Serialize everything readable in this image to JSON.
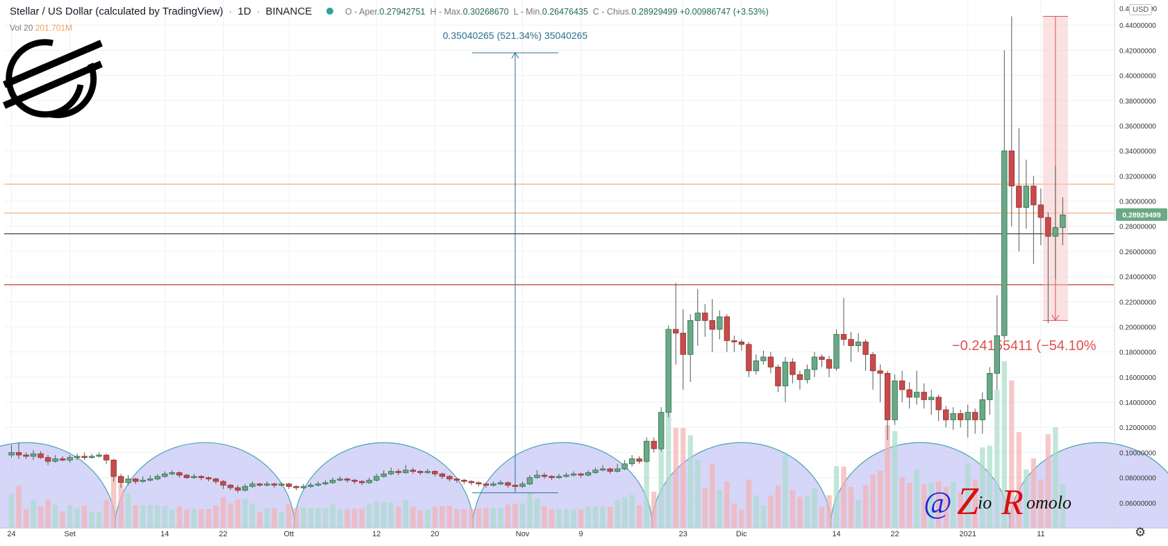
{
  "header": {
    "symbol_title": "Stellar / US Dollar (calculated by TradingView)",
    "interval": "1D",
    "exchange": "BINANCE",
    "open_label": "O - Aper.",
    "open_value": "0.27942751",
    "high_label": "H - Max.",
    "high_value": "0.30268670",
    "low_label": "L - Min.",
    "low_value": "0.26476435",
    "close_label": "C - Chius.",
    "close_value": "0.28929499",
    "change_value": "+0.00986747 (+3.53%)",
    "volume_label": "Vol 20",
    "volume_value": "201.701M",
    "currency_button": "USD"
  },
  "watermark": "@ ZioRomolo",
  "colors": {
    "up": "#26a69a",
    "up_body": "#6aa985",
    "down": "#ef5350",
    "down_body": "#c94a4a",
    "grid": "#eef0f3",
    "hline_orange": "#f0b07a",
    "hline_black": "#333333",
    "hline_red": "#c0392b",
    "measure_up": "#2a6f8a",
    "measure_down": "#e05050",
    "cycle_fill": "#c8c8f5",
    "cycle_stroke": "#4aa3b0",
    "price_tag": "#6aa985"
  },
  "icons": {
    "logo": "stellar-logo-icon",
    "settings": "gear-icon",
    "status": "live-dot-icon"
  },
  "chart_data": {
    "type": "candlestick",
    "ylim": [
      0.04,
      0.46
    ],
    "y_ticks": [
      "0.06000000",
      "0.08000000",
      "0.10000000",
      "0.12000000",
      "0.14000000",
      "0.16000000",
      "0.18000000",
      "0.20000000",
      "0.22000000",
      "0.24000000",
      "0.26000000",
      "0.28000000",
      "0.30000000",
      "0.32000000",
      "0.34000000",
      "0.36000000",
      "0.38000000",
      "0.40000000",
      "0.42000000",
      "0.44000000"
    ],
    "y_top_label": "0.4",
    "y_top_label_tail": "00",
    "x_ticks": [
      {
        "label": "24",
        "day": 0
      },
      {
        "label": "Set",
        "day": 8
      },
      {
        "label": "14",
        "day": 21
      },
      {
        "label": "22",
        "day": 29
      },
      {
        "label": "Ott",
        "day": 38
      },
      {
        "label": "12",
        "day": 50
      },
      {
        "label": "20",
        "day": 58
      },
      {
        "label": "Nov",
        "day": 70
      },
      {
        "label": "9",
        "day": 78
      },
      {
        "label": "23",
        "day": 92
      },
      {
        "label": "Dic",
        "day": 100
      },
      {
        "label": "14",
        "day": 113
      },
      {
        "label": "22",
        "day": 121
      },
      {
        "label": "2021",
        "day": 131
      },
      {
        "label": "11",
        "day": 141
      }
    ],
    "x_range_days": [
      -1,
      151
    ],
    "current_price": "0.28929499",
    "horizontal_lines": [
      {
        "price": 0.3135,
        "style": "orange"
      },
      {
        "price": 0.2905,
        "style": "orange"
      },
      {
        "price": 0.274,
        "style": "black"
      },
      {
        "price": 0.2335,
        "style": "red"
      }
    ],
    "measure_up": {
      "day": 69,
      "from": 0.068,
      "to": 0.418,
      "label": "0.35040265 (521.34%) 35040265"
    },
    "measure_down": {
      "day": 143,
      "from": 0.447,
      "to": 0.205,
      "label": "−0.24155411 (−54.10%"
    },
    "cycles": [
      {
        "center_day": 2,
        "radius_days": 12.3
      },
      {
        "center_day": 26.5,
        "radius_days": 12.3
      },
      {
        "center_day": 51,
        "radius_days": 12.3
      },
      {
        "center_day": 75.5,
        "radius_days": 12.3
      },
      {
        "center_day": 100,
        "radius_days": 12.3
      },
      {
        "center_day": 124.5,
        "radius_days": 12.3
      },
      {
        "center_day": 149,
        "radius_days": 12.3
      }
    ],
    "candles": [
      [
        0,
        0.098,
        0.1,
        0.106,
        0.096
      ],
      [
        1,
        0.1,
        0.098,
        0.108,
        0.095
      ],
      [
        2,
        0.098,
        0.097,
        0.1,
        0.095
      ],
      [
        3,
        0.097,
        0.099,
        0.102,
        0.094
      ],
      [
        4,
        0.099,
        0.096,
        0.101,
        0.095
      ],
      [
        5,
        0.096,
        0.093,
        0.098,
        0.09
      ],
      [
        6,
        0.093,
        0.095,
        0.098,
        0.092
      ],
      [
        7,
        0.095,
        0.094,
        0.097,
        0.093
      ],
      [
        8,
        0.094,
        0.096,
        0.098,
        0.092
      ],
      [
        9,
        0.096,
        0.097,
        0.099,
        0.094
      ],
      [
        10,
        0.097,
        0.096,
        0.1,
        0.094
      ],
      [
        11,
        0.096,
        0.097,
        0.099,
        0.095
      ],
      [
        12,
        0.097,
        0.098,
        0.1,
        0.096
      ],
      [
        13,
        0.098,
        0.094,
        0.099,
        0.091
      ],
      [
        14,
        0.094,
        0.081,
        0.095,
        0.077
      ],
      [
        15,
        0.081,
        0.076,
        0.083,
        0.072
      ],
      [
        16,
        0.076,
        0.079,
        0.082,
        0.074
      ],
      [
        17,
        0.079,
        0.077,
        0.08,
        0.075
      ],
      [
        18,
        0.077,
        0.078,
        0.081,
        0.076
      ],
      [
        19,
        0.078,
        0.079,
        0.082,
        0.077
      ],
      [
        20,
        0.079,
        0.081,
        0.083,
        0.078
      ],
      [
        21,
        0.081,
        0.083,
        0.085,
        0.08
      ],
      [
        22,
        0.083,
        0.084,
        0.086,
        0.082
      ],
      [
        23,
        0.084,
        0.082,
        0.085,
        0.08
      ],
      [
        24,
        0.082,
        0.08,
        0.083,
        0.079
      ],
      [
        25,
        0.08,
        0.081,
        0.083,
        0.079
      ],
      [
        26,
        0.081,
        0.08,
        0.082,
        0.078
      ],
      [
        27,
        0.08,
        0.079,
        0.081,
        0.077
      ],
      [
        28,
        0.079,
        0.077,
        0.08,
        0.075
      ],
      [
        29,
        0.077,
        0.074,
        0.078,
        0.071
      ],
      [
        30,
        0.074,
        0.072,
        0.075,
        0.07
      ],
      [
        31,
        0.072,
        0.07,
        0.074,
        0.068
      ],
      [
        32,
        0.07,
        0.073,
        0.075,
        0.069
      ],
      [
        33,
        0.073,
        0.075,
        0.077,
        0.072
      ],
      [
        34,
        0.075,
        0.074,
        0.076,
        0.073
      ],
      [
        35,
        0.074,
        0.075,
        0.077,
        0.073
      ],
      [
        36,
        0.075,
        0.074,
        0.076,
        0.072
      ],
      [
        37,
        0.074,
        0.075,
        0.076,
        0.073
      ],
      [
        38,
        0.075,
        0.073,
        0.076,
        0.071
      ],
      [
        39,
        0.073,
        0.072,
        0.074,
        0.07
      ],
      [
        40,
        0.072,
        0.073,
        0.075,
        0.071
      ],
      [
        41,
        0.073,
        0.074,
        0.076,
        0.072
      ],
      [
        42,
        0.074,
        0.075,
        0.077,
        0.073
      ],
      [
        43,
        0.075,
        0.076,
        0.078,
        0.074
      ],
      [
        44,
        0.076,
        0.078,
        0.08,
        0.075
      ],
      [
        45,
        0.078,
        0.079,
        0.081,
        0.077
      ],
      [
        46,
        0.079,
        0.078,
        0.08,
        0.076
      ],
      [
        47,
        0.078,
        0.077,
        0.079,
        0.075
      ],
      [
        48,
        0.077,
        0.076,
        0.078,
        0.074
      ],
      [
        49,
        0.076,
        0.078,
        0.08,
        0.075
      ],
      [
        50,
        0.078,
        0.081,
        0.083,
        0.077
      ],
      [
        51,
        0.081,
        0.083,
        0.086,
        0.08
      ],
      [
        52,
        0.083,
        0.085,
        0.088,
        0.082
      ],
      [
        53,
        0.085,
        0.084,
        0.087,
        0.082
      ],
      [
        54,
        0.084,
        0.086,
        0.09,
        0.083
      ],
      [
        55,
        0.086,
        0.085,
        0.088,
        0.083
      ],
      [
        56,
        0.085,
        0.084,
        0.086,
        0.082
      ],
      [
        57,
        0.084,
        0.085,
        0.087,
        0.083
      ],
      [
        58,
        0.085,
        0.083,
        0.086,
        0.081
      ],
      [
        59,
        0.083,
        0.081,
        0.084,
        0.079
      ],
      [
        60,
        0.081,
        0.079,
        0.082,
        0.077
      ],
      [
        61,
        0.079,
        0.078,
        0.08,
        0.076
      ],
      [
        62,
        0.078,
        0.077,
        0.079,
        0.075
      ],
      [
        63,
        0.077,
        0.076,
        0.078,
        0.074
      ],
      [
        64,
        0.076,
        0.075,
        0.077,
        0.073
      ],
      [
        65,
        0.075,
        0.074,
        0.076,
        0.072
      ],
      [
        66,
        0.074,
        0.075,
        0.077,
        0.073
      ],
      [
        67,
        0.075,
        0.076,
        0.078,
        0.074
      ],
      [
        68,
        0.076,
        0.074,
        0.077,
        0.072
      ],
      [
        69,
        0.074,
        0.073,
        0.075,
        0.07
      ],
      [
        70,
        0.073,
        0.075,
        0.077,
        0.072
      ],
      [
        71,
        0.075,
        0.08,
        0.082,
        0.074
      ],
      [
        72,
        0.08,
        0.082,
        0.086,
        0.079
      ],
      [
        73,
        0.082,
        0.081,
        0.084,
        0.079
      ],
      [
        74,
        0.081,
        0.08,
        0.082,
        0.078
      ],
      [
        75,
        0.08,
        0.081,
        0.083,
        0.079
      ],
      [
        76,
        0.081,
        0.082,
        0.084,
        0.08
      ],
      [
        77,
        0.082,
        0.083,
        0.085,
        0.081
      ],
      [
        78,
        0.083,
        0.082,
        0.084,
        0.08
      ],
      [
        79,
        0.082,
        0.084,
        0.086,
        0.081
      ],
      [
        80,
        0.084,
        0.086,
        0.088,
        0.083
      ],
      [
        81,
        0.086,
        0.087,
        0.09,
        0.085
      ],
      [
        82,
        0.087,
        0.085,
        0.088,
        0.083
      ],
      [
        83,
        0.085,
        0.087,
        0.091,
        0.084
      ],
      [
        84,
        0.087,
        0.091,
        0.094,
        0.086
      ],
      [
        85,
        0.091,
        0.095,
        0.098,
        0.089
      ],
      [
        86,
        0.095,
        0.093,
        0.097,
        0.091
      ],
      [
        87,
        0.093,
        0.109,
        0.112,
        0.092
      ],
      [
        88,
        0.109,
        0.103,
        0.112,
        0.1
      ],
      [
        89,
        0.103,
        0.132,
        0.136,
        0.101
      ],
      [
        90,
        0.132,
        0.198,
        0.201,
        0.128
      ],
      [
        91,
        0.198,
        0.195,
        0.235,
        0.17
      ],
      [
        92,
        0.195,
        0.178,
        0.214,
        0.15
      ],
      [
        93,
        0.178,
        0.205,
        0.21,
        0.156
      ],
      [
        94,
        0.205,
        0.211,
        0.23,
        0.185
      ],
      [
        95,
        0.211,
        0.205,
        0.218,
        0.192
      ],
      [
        96,
        0.205,
        0.198,
        0.222,
        0.18
      ],
      [
        97,
        0.198,
        0.208,
        0.213,
        0.19
      ],
      [
        98,
        0.208,
        0.189,
        0.21,
        0.18
      ],
      [
        99,
        0.189,
        0.188,
        0.193,
        0.18
      ],
      [
        100,
        0.188,
        0.186,
        0.19,
        0.181
      ],
      [
        101,
        0.186,
        0.165,
        0.188,
        0.16
      ],
      [
        102,
        0.165,
        0.173,
        0.178,
        0.162
      ],
      [
        103,
        0.173,
        0.176,
        0.181,
        0.17
      ],
      [
        104,
        0.176,
        0.168,
        0.18,
        0.163
      ],
      [
        105,
        0.168,
        0.153,
        0.17,
        0.148
      ],
      [
        106,
        0.153,
        0.172,
        0.176,
        0.14
      ],
      [
        107,
        0.172,
        0.162,
        0.175,
        0.155
      ],
      [
        108,
        0.162,
        0.158,
        0.165,
        0.15
      ],
      [
        109,
        0.158,
        0.166,
        0.17,
        0.155
      ],
      [
        110,
        0.166,
        0.176,
        0.18,
        0.16
      ],
      [
        111,
        0.176,
        0.174,
        0.178,
        0.168
      ],
      [
        112,
        0.174,
        0.167,
        0.177,
        0.16
      ],
      [
        113,
        0.167,
        0.194,
        0.198,
        0.165
      ],
      [
        114,
        0.194,
        0.19,
        0.223,
        0.185
      ],
      [
        115,
        0.19,
        0.185,
        0.196,
        0.172
      ],
      [
        116,
        0.185,
        0.188,
        0.195,
        0.18
      ],
      [
        117,
        0.188,
        0.178,
        0.19,
        0.165
      ],
      [
        118,
        0.178,
        0.165,
        0.18,
        0.15
      ],
      [
        119,
        0.165,
        0.163,
        0.17,
        0.14
      ],
      [
        120,
        0.163,
        0.126,
        0.165,
        0.11
      ],
      [
        121,
        0.126,
        0.157,
        0.162,
        0.122
      ],
      [
        122,
        0.157,
        0.15,
        0.165,
        0.14
      ],
      [
        123,
        0.15,
        0.144,
        0.156,
        0.135
      ],
      [
        124,
        0.144,
        0.148,
        0.165,
        0.138
      ],
      [
        125,
        0.148,
        0.142,
        0.155,
        0.135
      ],
      [
        126,
        0.142,
        0.144,
        0.15,
        0.13
      ],
      [
        127,
        0.144,
        0.134,
        0.146,
        0.125
      ],
      [
        128,
        0.134,
        0.126,
        0.137,
        0.12
      ],
      [
        129,
        0.126,
        0.131,
        0.136,
        0.118
      ],
      [
        130,
        0.131,
        0.126,
        0.134,
        0.12
      ],
      [
        131,
        0.126,
        0.132,
        0.138,
        0.112
      ],
      [
        132,
        0.132,
        0.126,
        0.135,
        0.115
      ],
      [
        133,
        0.126,
        0.142,
        0.148,
        0.115
      ],
      [
        134,
        0.142,
        0.163,
        0.168,
        0.13
      ],
      [
        135,
        0.163,
        0.193,
        0.225,
        0.15
      ],
      [
        136,
        0.193,
        0.34,
        0.42,
        0.19
      ],
      [
        137,
        0.34,
        0.312,
        0.447,
        0.28
      ],
      [
        138,
        0.312,
        0.295,
        0.358,
        0.26
      ],
      [
        139,
        0.295,
        0.312,
        0.333,
        0.278
      ],
      [
        140,
        0.312,
        0.297,
        0.32,
        0.25
      ],
      [
        141,
        0.297,
        0.287,
        0.31,
        0.265
      ],
      [
        142,
        0.287,
        0.272,
        0.291,
        0.203
      ],
      [
        143,
        0.272,
        0.279,
        0.328,
        0.238
      ],
      [
        144,
        0.279,
        0.289,
        0.303,
        0.265
      ]
    ]
  }
}
